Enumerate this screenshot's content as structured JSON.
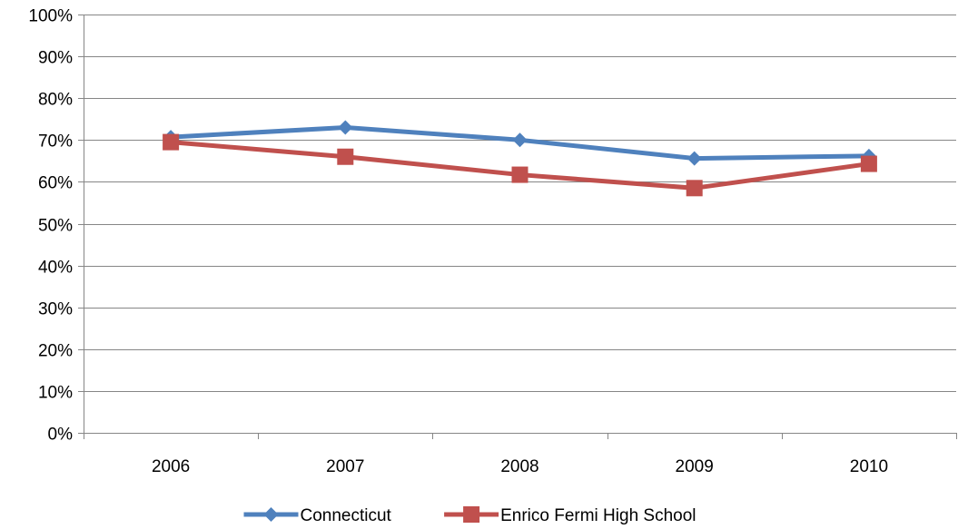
{
  "chart_data": {
    "type": "line",
    "title": "",
    "xlabel": "",
    "ylabel": "",
    "categories": [
      "2006",
      "2007",
      "2008",
      "2009",
      "2010"
    ],
    "ylim": [
      0,
      100
    ],
    "ytick_step": 10,
    "ytick_suffix": "%",
    "grid": true,
    "legend_position": "bottom",
    "series": [
      {
        "name": "Connecticut",
        "values": [
          70.7,
          73.0,
          70.0,
          65.6,
          66.2
        ],
        "color": "#4F81BD",
        "marker": "diamond"
      },
      {
        "name": "Enrico Fermi High School",
        "values": [
          69.5,
          66.0,
          61.7,
          58.5,
          64.3
        ],
        "color": "#C0504D",
        "marker": "square"
      }
    ]
  }
}
